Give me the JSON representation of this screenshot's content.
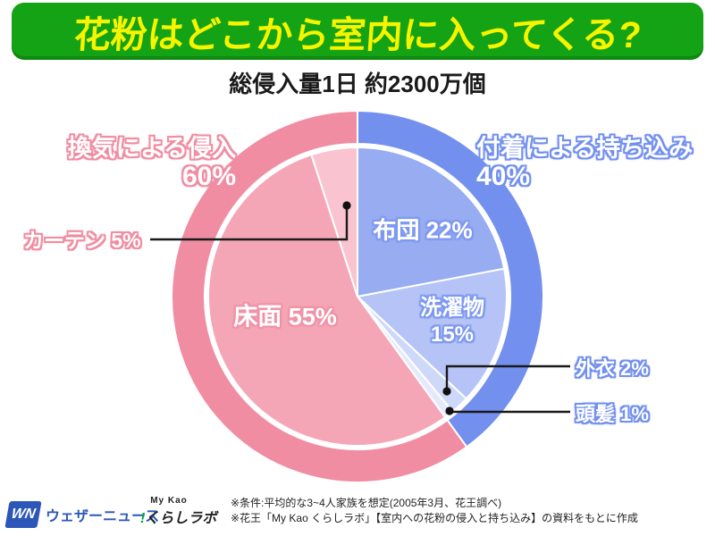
{
  "header": {
    "title": "花粉はどこから室内に入ってくる?",
    "banner_color": "#14A314",
    "title_color": "#F7F400"
  },
  "subtitle": "総侵入量1日 約2300万個",
  "chart_data": {
    "type": "pie",
    "title": "総侵入量1日 約2300万個",
    "start": "top",
    "direction": "clockwise",
    "groups": [
      {
        "label": "換気による侵入",
        "value": 60,
        "color": "#F08DA2",
        "items": [
          {
            "label": "床面",
            "value": 55,
            "color": "#F5A6B6"
          },
          {
            "label": "カーテン",
            "value": 5,
            "color": "#F9C4CF"
          }
        ]
      },
      {
        "label": "付着による持ち込み",
        "value": 40,
        "color": "#7390EE",
        "items": [
          {
            "label": "布団",
            "value": 22,
            "color": "#97ACF1"
          },
          {
            "label": "洗濯物",
            "value": 15,
            "color": "#B5C3F6"
          },
          {
            "label": "外衣",
            "value": 2,
            "color": "#CED9F9"
          },
          {
            "label": "頭髪",
            "value": 1,
            "color": "#E4EAFC"
          }
        ]
      }
    ],
    "outer_sequence": [
      "付着による持ち込み",
      "換気による侵入"
    ],
    "clockwise_sequence": [
      "布団",
      "洗濯物",
      "外衣",
      "頭髪",
      "床面",
      "カーテン"
    ],
    "legend_position": "none",
    "grid": false
  },
  "labels": {
    "ventilation_title": "換気による侵入",
    "ventilation_pct": "60%",
    "adhesion_title": "付着による持ち込み",
    "adhesion_pct": "40%",
    "futon": "布団 22%",
    "laundry_line1": "洗濯物",
    "laundry_line2": "15%",
    "floor": "床面 55%",
    "curtain": "カーテン 5%",
    "outerwear": "外衣 2%",
    "hair": "頭髪 1%"
  },
  "colors": {
    "callout_line": "#1A1A1A",
    "weathernews_blue": "#2C56B8",
    "kao_green": "#00A23E",
    "separator_white": "#FFFFFF"
  },
  "footer": {
    "wn_mark": "WN",
    "weathernews_text": "ウェザーニュース",
    "mykao_top": "My Kao",
    "mykao_excl": "!",
    "mykao_name": "くらしラボ",
    "note1": "※条件:平均的な3~4人家族を想定(2005年3月、花王調べ)",
    "note2": "※花王「My Kao くらしラボ」【室内への花粉の侵入と持ち込み】の資料をもとに作成"
  }
}
